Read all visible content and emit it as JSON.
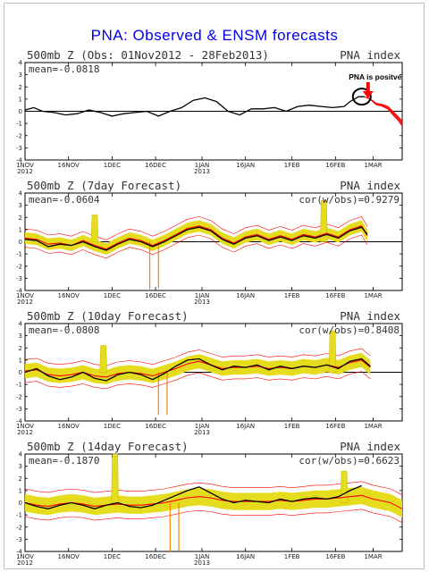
{
  "title": "PNA: Observed & ENSM forecasts",
  "annotation": "PNA is positve",
  "colors": {
    "observed": "#000000",
    "forecast_mean": "#ff0000",
    "spread": "#e6dc1e",
    "bias": "#ff7f00",
    "zero_line": "#000000",
    "ensemble_members": "#ff0000"
  },
  "chart_data": [
    {
      "type": "line",
      "title": "500mb Z (Obs: 01Nov2012 - 28Feb2013)",
      "right_label": "PNA index",
      "stat": "mean=-0.0818",
      "ylim": [
        -4,
        4
      ],
      "yticks": [
        "4",
        "3",
        "2",
        "1",
        "0",
        "-1",
        "-2",
        "-3",
        "-4"
      ],
      "xticks": [
        {
          "day": 0,
          "label": "1NOV",
          "year": "2012"
        },
        {
          "day": 15,
          "label": "16NOV"
        },
        {
          "day": 30,
          "label": "1DEC"
        },
        {
          "day": 45,
          "label": "16DEC"
        },
        {
          "day": 61,
          "label": "1JAN",
          "year": "2013"
        },
        {
          "day": 76,
          "label": "16JAN"
        },
        {
          "day": 92,
          "label": "1FEB"
        },
        {
          "day": 107,
          "label": "16FEB"
        },
        {
          "day": 120,
          "label": "1MAR"
        }
      ],
      "xlim": [
        0,
        130
      ],
      "series": [
        {
          "role": "observed",
          "x": [
            0,
            3,
            6,
            10,
            14,
            18,
            22,
            26,
            30,
            34,
            38,
            42,
            46,
            50,
            54,
            58,
            62,
            66,
            70,
            74,
            78,
            82,
            86,
            90,
            94,
            98,
            102,
            106,
            110,
            112,
            115,
            117
          ],
          "y": [
            0.1,
            0.3,
            0.0,
            -0.1,
            -0.3,
            -0.2,
            0.1,
            -0.1,
            -0.4,
            -0.2,
            -0.1,
            0.0,
            -0.4,
            0.0,
            0.3,
            0.9,
            1.1,
            0.8,
            0.0,
            -0.3,
            0.2,
            0.2,
            0.3,
            0.0,
            0.4,
            0.5,
            0.4,
            0.3,
            0.4,
            0.8,
            1.2,
            1.2
          ]
        },
        {
          "role": "ensemble_forecast",
          "x": [
            117,
            119,
            121,
            123,
            125,
            127,
            129,
            130
          ],
          "y": [
            1.2,
            1.0,
            0.6,
            0.5,
            0.3,
            -0.2,
            -0.7,
            -1.0
          ]
        }
      ]
    },
    {
      "type": "line",
      "title": "500mb Z (7day Forecast)",
      "right_label": "PNA index",
      "stat": "mean=-0.0604",
      "corr": "cor(w/obs)=0.9279",
      "ylim": [
        -4,
        4
      ],
      "yticks": [
        "4",
        "3",
        "2",
        "1",
        "0",
        "-1",
        "-2",
        "-3",
        "-4"
      ],
      "xticks": [
        {
          "day": 0,
          "label": "1NOV",
          "year": "2012"
        },
        {
          "day": 15,
          "label": "16NOV"
        },
        {
          "day": 30,
          "label": "1DEC"
        },
        {
          "day": 45,
          "label": "16DEC"
        },
        {
          "day": 61,
          "label": "1JAN",
          "year": "2013"
        },
        {
          "day": 76,
          "label": "16JAN"
        },
        {
          "day": 92,
          "label": "1FEB"
        },
        {
          "day": 107,
          "label": "16FEB"
        },
        {
          "day": 120,
          "label": "1MAR"
        }
      ],
      "xlim": [
        0,
        130
      ],
      "spikes": [
        {
          "x": 24,
          "y": 2.2
        },
        {
          "x": 103,
          "y": 3.4
        }
      ],
      "dips": [
        {
          "x": 43,
          "y": -3.9
        },
        {
          "x": 46,
          "y": -3.8
        }
      ],
      "series": [
        {
          "role": "observed",
          "x": [
            0,
            4,
            8,
            12,
            16,
            20,
            24,
            28,
            32,
            36,
            40,
            44,
            48,
            52,
            56,
            60,
            64,
            68,
            72,
            76,
            80,
            84,
            88,
            92,
            96,
            100,
            104,
            108,
            112,
            116,
            118
          ],
          "y": [
            0.2,
            0.1,
            -0.4,
            -0.2,
            -0.3,
            0.0,
            -0.4,
            -0.7,
            -0.2,
            0.2,
            0.0,
            -0.4,
            0.0,
            0.5,
            1.0,
            1.2,
            0.9,
            0.2,
            -0.2,
            0.3,
            0.5,
            0.1,
            0.4,
            0.1,
            0.5,
            0.3,
            0.6,
            0.3,
            0.9,
            1.2,
            0.6
          ]
        },
        {
          "role": "forecast_mean",
          "x": [
            0,
            4,
            8,
            12,
            16,
            20,
            24,
            28,
            32,
            36,
            40,
            44,
            48,
            52,
            56,
            60,
            64,
            68,
            72,
            76,
            80,
            84,
            88,
            92,
            96,
            100,
            104,
            108,
            112,
            116,
            118
          ],
          "y": [
            0.3,
            0.2,
            -0.2,
            -0.1,
            -0.3,
            0.1,
            -0.3,
            -0.6,
            -0.1,
            0.3,
            0.1,
            -0.3,
            0.1,
            0.6,
            1.1,
            1.3,
            1.0,
            0.3,
            -0.1,
            0.4,
            0.6,
            0.2,
            0.5,
            0.2,
            0.6,
            0.4,
            0.7,
            0.4,
            1.0,
            1.3,
            0.5
          ]
        }
      ]
    },
    {
      "type": "line",
      "title": "500mb Z (10day Forecast)",
      "right_label": "PNA index",
      "stat": "mean=-0.0808",
      "corr": "cor(w/obs)=0.8408",
      "ylim": [
        -4,
        4
      ],
      "yticks": [
        "4",
        "3",
        "2",
        "1",
        "0",
        "-1",
        "-2",
        "-3",
        "-4"
      ],
      "xticks": [
        {
          "day": 0,
          "label": "1NOV",
          "year": "2012"
        },
        {
          "day": 15,
          "label": "16NOV"
        },
        {
          "day": 30,
          "label": "1DEC"
        },
        {
          "day": 45,
          "label": "16DEC"
        },
        {
          "day": 61,
          "label": "1JAN",
          "year": "2013"
        },
        {
          "day": 76,
          "label": "16JAN"
        },
        {
          "day": 92,
          "label": "1FEB"
        },
        {
          "day": 107,
          "label": "16FEB"
        },
        {
          "day": 120,
          "label": "1MAR"
        }
      ],
      "xlim": [
        0,
        130
      ],
      "spikes": [
        {
          "x": 27,
          "y": 2.2
        },
        {
          "x": 106,
          "y": 3.4
        }
      ],
      "dips": [
        {
          "x": 46,
          "y": -3.5
        },
        {
          "x": 49,
          "y": -3.5
        }
      ],
      "series": [
        {
          "role": "observed",
          "x": [
            0,
            4,
            8,
            12,
            16,
            20,
            24,
            28,
            32,
            36,
            40,
            44,
            48,
            52,
            56,
            60,
            64,
            68,
            72,
            76,
            80,
            84,
            88,
            92,
            96,
            100,
            104,
            108,
            112,
            116,
            119
          ],
          "y": [
            0.0,
            0.3,
            -0.3,
            -0.6,
            -0.4,
            0.0,
            -0.5,
            -0.7,
            -0.2,
            0.0,
            -0.2,
            -0.6,
            -0.1,
            0.5,
            1.0,
            1.1,
            0.6,
            0.2,
            0.5,
            0.4,
            0.6,
            0.2,
            0.5,
            0.3,
            0.5,
            0.4,
            0.6,
            0.3,
            0.9,
            1.1,
            0.5
          ]
        },
        {
          "role": "forecast_mean",
          "x": [
            0,
            4,
            8,
            12,
            16,
            20,
            24,
            28,
            32,
            36,
            40,
            44,
            48,
            52,
            56,
            60,
            64,
            68,
            72,
            76,
            80,
            84,
            88,
            92,
            96,
            100,
            104,
            108,
            112,
            116,
            119
          ],
          "y": [
            0.1,
            0.2,
            -0.2,
            -0.3,
            -0.2,
            0.0,
            -0.3,
            -0.4,
            -0.1,
            0.0,
            -0.1,
            -0.3,
            0.0,
            0.3,
            0.7,
            0.9,
            0.6,
            0.3,
            0.4,
            0.4,
            0.5,
            0.3,
            0.4,
            0.3,
            0.5,
            0.4,
            0.6,
            0.4,
            0.8,
            1.0,
            0.4
          ]
        }
      ]
    },
    {
      "type": "line",
      "title": "500mb Z (14day Forecast)",
      "right_label": "PNA index",
      "stat": "mean=-0.1870",
      "corr": "cor(w/obs)=0.6623",
      "ylim": [
        -4,
        4
      ],
      "yticks": [
        "4",
        "3",
        "2",
        "1",
        "0",
        "-1",
        "-2",
        "-3",
        "-4"
      ],
      "xticks": [
        {
          "day": 0,
          "label": "1NOV",
          "year": "2012"
        },
        {
          "day": 15,
          "label": "16NOV"
        },
        {
          "day": 30,
          "label": "1DEC"
        },
        {
          "day": 45,
          "label": "16DEC"
        },
        {
          "day": 61,
          "label": "1JAN",
          "year": "2013"
        },
        {
          "day": 76,
          "label": "16JAN"
        },
        {
          "day": 92,
          "label": "1FEB"
        },
        {
          "day": 107,
          "label": "16FEB"
        },
        {
          "day": 120,
          "label": "1MAR"
        }
      ],
      "xlim": [
        0,
        130
      ],
      "spikes": [
        {
          "x": 31,
          "y": 4.0
        },
        {
          "x": 110,
          "y": 2.6
        }
      ],
      "dips": [
        {
          "x": 50,
          "y": -4.0
        },
        {
          "x": 53,
          "y": -4.0
        }
      ],
      "series": [
        {
          "role": "observed",
          "x": [
            0,
            4,
            8,
            12,
            16,
            20,
            24,
            28,
            32,
            36,
            40,
            44,
            48,
            52,
            56,
            60,
            64,
            68,
            72,
            76,
            80,
            84,
            88,
            92,
            96,
            100,
            104,
            108,
            112,
            116
          ],
          "y": [
            0.0,
            -0.3,
            -0.5,
            -0.2,
            0.0,
            -0.2,
            -0.5,
            -0.2,
            0.0,
            -0.3,
            -0.4,
            -0.2,
            0.2,
            0.6,
            1.0,
            1.3,
            0.8,
            0.3,
            0.0,
            0.2,
            0.1,
            0.0,
            0.3,
            0.1,
            0.3,
            0.4,
            0.3,
            0.5,
            1.0,
            1.4
          ]
        },
        {
          "role": "forecast_mean",
          "x": [
            0,
            4,
            8,
            12,
            16,
            20,
            24,
            28,
            32,
            36,
            40,
            44,
            48,
            52,
            56,
            60,
            64,
            68,
            72,
            76,
            80,
            84,
            88,
            92,
            96,
            100,
            104,
            108,
            112,
            116,
            120,
            126,
            130
          ],
          "y": [
            0.0,
            -0.2,
            -0.3,
            -0.1,
            0.0,
            -0.1,
            -0.3,
            -0.2,
            -0.1,
            -0.2,
            -0.2,
            -0.1,
            0.0,
            0.2,
            0.4,
            0.5,
            0.4,
            0.2,
            0.1,
            0.1,
            0.1,
            0.1,
            0.2,
            0.1,
            0.2,
            0.3,
            0.3,
            0.4,
            0.5,
            0.6,
            0.3,
            0.0,
            -0.5
          ]
        }
      ]
    }
  ]
}
